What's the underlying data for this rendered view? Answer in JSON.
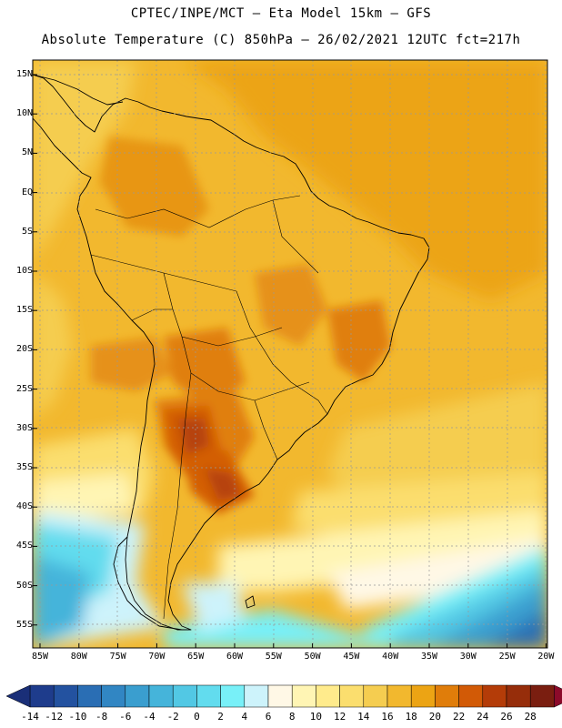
{
  "header": {
    "line1": "CPTEC/INPE/MCT –  Eta Model 15km – GFS",
    "line2": "Absolute Temperature (C) 850hPa – 26/02/2021 12UTC fct=217h"
  },
  "lat_labels": [
    "15N",
    "10N",
    "5N",
    "EQ",
    "5S",
    "10S",
    "15S",
    "20S",
    "25S",
    "30S",
    "35S",
    "40S",
    "45S",
    "50S",
    "55S"
  ],
  "lon_labels": [
    "85W",
    "80W",
    "75W",
    "70W",
    "65W",
    "60W",
    "55W",
    "50W",
    "45W",
    "40W",
    "35W",
    "30W",
    "25W",
    "20W"
  ],
  "colorbar": {
    "labels": [
      "-14",
      "-12",
      "-10",
      "-8",
      "-6",
      "-4",
      "-2",
      "0",
      "2",
      "4",
      "6",
      "8",
      "10",
      "12",
      "14",
      "16",
      "18",
      "20",
      "22",
      "24",
      "26",
      "28"
    ],
    "colors": [
      "#1e3c8c",
      "#2352a0",
      "#2a6eb4",
      "#3186c3",
      "#3a9ecf",
      "#45b4da",
      "#52c8e4",
      "#62dcee",
      "#78f0f8",
      "#cdf3fb",
      "#fff8e6",
      "#fff5b4",
      "#ffeb8c",
      "#fbde6e",
      "#f5cd50",
      "#f2b82e",
      "#eca414",
      "#e07d0a",
      "#d25a06",
      "#b43c08",
      "#962d0a",
      "#7a1e10"
    ],
    "low_arrow": "#1a2f78",
    "high_arrow": "#8c0a2a"
  }
}
